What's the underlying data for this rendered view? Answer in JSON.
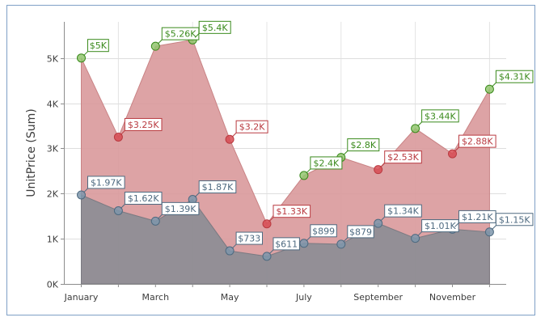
{
  "chart_data": {
    "type": "area",
    "ylabel": "UnitPrice (Sum)",
    "ylim": [
      0,
      5800
    ],
    "grid": true,
    "y_ticks": [
      {
        "value": 0,
        "label": "0K"
      },
      {
        "value": 1000,
        "label": "1K"
      },
      {
        "value": 2000,
        "label": "2K"
      },
      {
        "value": 3000,
        "label": "3K"
      },
      {
        "value": 4000,
        "label": "4K"
      },
      {
        "value": 5000,
        "label": "5K"
      }
    ],
    "x_tick_labels": [
      {
        "index": 0,
        "label": "January"
      },
      {
        "index": 2,
        "label": "March"
      },
      {
        "index": 4,
        "label": "May"
      },
      {
        "index": 6,
        "label": "July"
      },
      {
        "index": 8,
        "label": "September"
      },
      {
        "index": 10,
        "label": "November"
      }
    ],
    "series": [
      {
        "values": [
          5000,
          3250,
          5260,
          5400,
          3200,
          1330,
          2400,
          2800,
          2530,
          3440,
          2880,
          4310
        ],
        "labels": [
          "$5K",
          "$3.25K",
          "$5.26K",
          "$5.4K",
          "$3.2K",
          "$1.33K",
          "$2.4K",
          "$2.8K",
          "$2.53K",
          "$3.44K",
          "$2.88K",
          "$4.31K"
        ],
        "color": "#d9999b",
        "marker_up": "#92c66e",
        "marker_down": "#d74b52",
        "label_up_color": "#3a8a1c",
        "label_down_color": "#b93a40"
      },
      {
        "values": [
          1970,
          1620,
          1390,
          1870,
          733,
          611,
          899,
          879,
          1340,
          1010,
          1210,
          1150
        ],
        "labels": [
          "$1.97K",
          "$1.62K",
          "$1.39K",
          "$1.87K",
          "$733",
          "$611",
          "$899",
          "$879",
          "$1.34K",
          "$1.01K",
          "$1.21K",
          "$1.15K"
        ],
        "color": "#8e8e95",
        "marker": "#7e97ab",
        "label_color": "#4e6a80"
      }
    ]
  }
}
